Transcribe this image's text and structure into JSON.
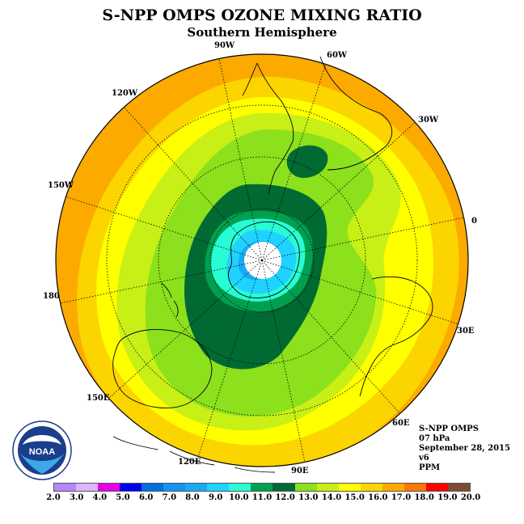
{
  "title": "S-NPP OMPS OZONE MIXING RATIO",
  "subtitle": "Southern Hemisphere",
  "longitude_labels": [
    "90W",
    "60W",
    "120W",
    "30W",
    "150W",
    "0",
    "180",
    "30E",
    "150E",
    "60E",
    "120E",
    "90E"
  ],
  "info": {
    "instrument": "S-NPP OMPS",
    "level": "07 hPa",
    "date": "September 28, 2015",
    "version": "v6",
    "units": "PPM"
  },
  "logo": {
    "text": "NOAA",
    "icon": "noaa-logo"
  },
  "legend": {
    "ticks": [
      "2.0",
      "3.0",
      "4.0",
      "5.0",
      "6.0",
      "7.0",
      "8.0",
      "9.0",
      "10.0",
      "11.0",
      "12.0",
      "13.0",
      "14.0",
      "15.0",
      "16.0",
      "17.0",
      "18.0",
      "19.0",
      "20.0"
    ],
    "colors": [
      "#b388ff",
      "#dcb4ff",
      "#e600e6",
      "#0000f0",
      "#0070e0",
      "#1494f0",
      "#18aaf5",
      "#20d2ff",
      "#28fcd4",
      "#00a050",
      "#006a32",
      "#8ce01c",
      "#c8f016",
      "#ffff00",
      "#fcd400",
      "#fcaa00",
      "#fc7800",
      "#fc0000",
      "#7c4c34"
    ]
  },
  "map_colors": {
    "outer": "#fcaa00",
    "band16": "#fcd400",
    "band15": "#ffff00",
    "band14": "#c8f016",
    "band13": "#8ce01c",
    "band12": "#006a32",
    "band11": "#00a050",
    "band10": "#28fcd4",
    "band9": "#20d2ff",
    "band8": "#18aaf5",
    "pole": "#ffffff",
    "edge": "#fc7800"
  }
}
